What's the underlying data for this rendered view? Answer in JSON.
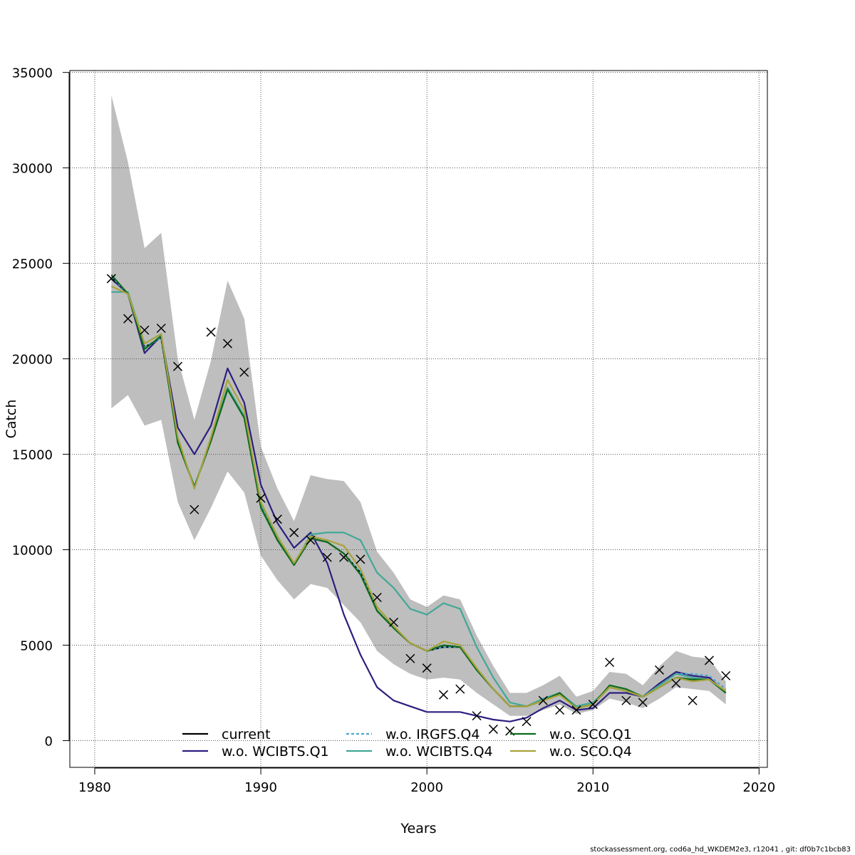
{
  "chart_data": {
    "type": "line",
    "title": "",
    "xlabel": "Years",
    "ylabel": "Catch",
    "xlim": [
      1980,
      2020
    ],
    "ylim": [
      0,
      35000
    ],
    "x_ticks": [
      1980,
      1990,
      2000,
      2010,
      2020
    ],
    "y_ticks": [
      0,
      5000,
      10000,
      15000,
      20000,
      25000,
      30000,
      35000
    ],
    "grid": true,
    "legend_position": "bottom",
    "years": [
      1981,
      1982,
      1983,
      1984,
      1985,
      1986,
      1987,
      1988,
      1989,
      1990,
      1991,
      1992,
      1993,
      1994,
      1995,
      1996,
      1997,
      1998,
      1999,
      2000,
      2001,
      2002,
      2003,
      2004,
      2005,
      2006,
      2007,
      2008,
      2009,
      2010,
      2011,
      2012,
      2013,
      2014,
      2015,
      2016,
      2017,
      2018
    ],
    "band": {
      "color": "#bebebe",
      "upper": [
        33800,
        30300,
        25800,
        26600,
        20000,
        16800,
        19900,
        24100,
        22100,
        15400,
        13200,
        11500,
        13900,
        13700,
        13600,
        12500,
        9900,
        8800,
        7400,
        7000,
        7600,
        7400,
        5500,
        3900,
        2500,
        2500,
        2900,
        3400,
        2300,
        2600,
        3600,
        3500,
        2900,
        3900,
        4700,
        4400,
        4300,
        3100
      ],
      "lower": [
        17400,
        18100,
        16500,
        16800,
        12500,
        10500,
        12200,
        14100,
        13000,
        9700,
        8400,
        7400,
        8200,
        8000,
        7100,
        6200,
        4700,
        4000,
        3500,
        3200,
        3300,
        3200,
        2500,
        1900,
        1300,
        1300,
        1600,
        1900,
        1400,
        1600,
        2200,
        2000,
        1700,
        2200,
        2800,
        2700,
        2600,
        1900
      ]
    },
    "series": [
      {
        "name": "current",
        "color": "#000000",
        "values": [
          24300,
          23400,
          20600,
          21100,
          15700,
          13300,
          15700,
          18400,
          17000,
          12300,
          10500,
          9200,
          10600,
          10400,
          9800,
          8800,
          6800,
          5900,
          5100,
          4700,
          4900,
          4900,
          3700,
          2700,
          1800,
          1800,
          2100,
          2500,
          1700,
          1900,
          2800,
          2600,
          2300,
          2800,
          3300,
          3200,
          3200,
          2500
        ]
      },
      {
        "name": "w.o. WCIBTS.Q1",
        "color": "#2c1f7f",
        "values": [
          24200,
          23400,
          20300,
          21200,
          16400,
          15000,
          16500,
          19500,
          17700,
          13400,
          11400,
          10100,
          10900,
          9300,
          6600,
          4500,
          2800,
          2100,
          1800,
          1500,
          1500,
          1500,
          1300,
          1100,
          1000,
          1200,
          1700,
          2100,
          1600,
          1700,
          2500,
          2500,
          2300,
          3000,
          3600,
          3400,
          3300,
          2500
        ]
      },
      {
        "name": "w.o. IRGFS.Q4",
        "color": "#4ca7d6",
        "dash": "4,3",
        "values": [
          24300,
          23400,
          20600,
          21100,
          15700,
          13300,
          15700,
          18400,
          17000,
          12300,
          10500,
          9200,
          10600,
          10400,
          9800,
          8800,
          6800,
          5900,
          5100,
          4700,
          4900,
          4900,
          3700,
          2700,
          1800,
          1800,
          2100,
          2500,
          1700,
          1900,
          2800,
          2600,
          2300,
          2900,
          3500,
          3500,
          3400,
          2700
        ]
      },
      {
        "name": "w.o. WCIBTS.Q4",
        "color": "#41a896",
        "values": [
          23500,
          23500,
          20800,
          21300,
          15700,
          13300,
          15800,
          18500,
          17000,
          12400,
          10700,
          9200,
          10800,
          10900,
          10900,
          10500,
          8800,
          8000,
          6900,
          6600,
          7200,
          6900,
          4900,
          3300,
          2000,
          1800,
          2200,
          2500,
          1800,
          2000,
          2800,
          2600,
          2300,
          2900,
          3500,
          3300,
          3200,
          2500
        ]
      },
      {
        "name": "w.o. SCO.Q1",
        "color": "#0d6b1e",
        "values": [
          24400,
          23400,
          20500,
          21200,
          15600,
          13300,
          15700,
          18400,
          16900,
          12200,
          10500,
          9200,
          10600,
          10400,
          9800,
          8700,
          6800,
          5900,
          5100,
          4700,
          5000,
          4900,
          3700,
          2700,
          1800,
          1800,
          2100,
          2500,
          1700,
          1900,
          2900,
          2700,
          2300,
          2800,
          3300,
          3200,
          3200,
          2500
        ]
      },
      {
        "name": "w.o. SCO.Q4",
        "color": "#a8a33b",
        "values": [
          23800,
          23400,
          20800,
          21300,
          15900,
          13200,
          15900,
          18900,
          17300,
          12500,
          10700,
          9300,
          10700,
          10500,
          10200,
          9000,
          7000,
          6000,
          5100,
          4700,
          5200,
          5000,
          3800,
          2700,
          1800,
          1800,
          2100,
          2400,
          1700,
          1900,
          2800,
          2600,
          2300,
          2800,
          3300,
          3100,
          3200,
          2600
        ]
      }
    ],
    "observed": {
      "marker": "x",
      "values": [
        24200,
        22100,
        21500,
        21600,
        19600,
        12100,
        21400,
        20800,
        19300,
        12700,
        11600,
        10900,
        10500,
        9600,
        9600,
        9500,
        7500,
        6200,
        4300,
        3800,
        2400,
        2700,
        1300,
        600,
        500,
        1000,
        2100,
        1600,
        1600,
        1900,
        4100,
        2100,
        2000,
        3700,
        3000,
        2100,
        4200,
        3400
      ]
    }
  },
  "footer": {
    "text": "stockassessment.org, cod6a_hd_WKDEM2e3, r12041 , git: df0b7c1bcb83"
  }
}
